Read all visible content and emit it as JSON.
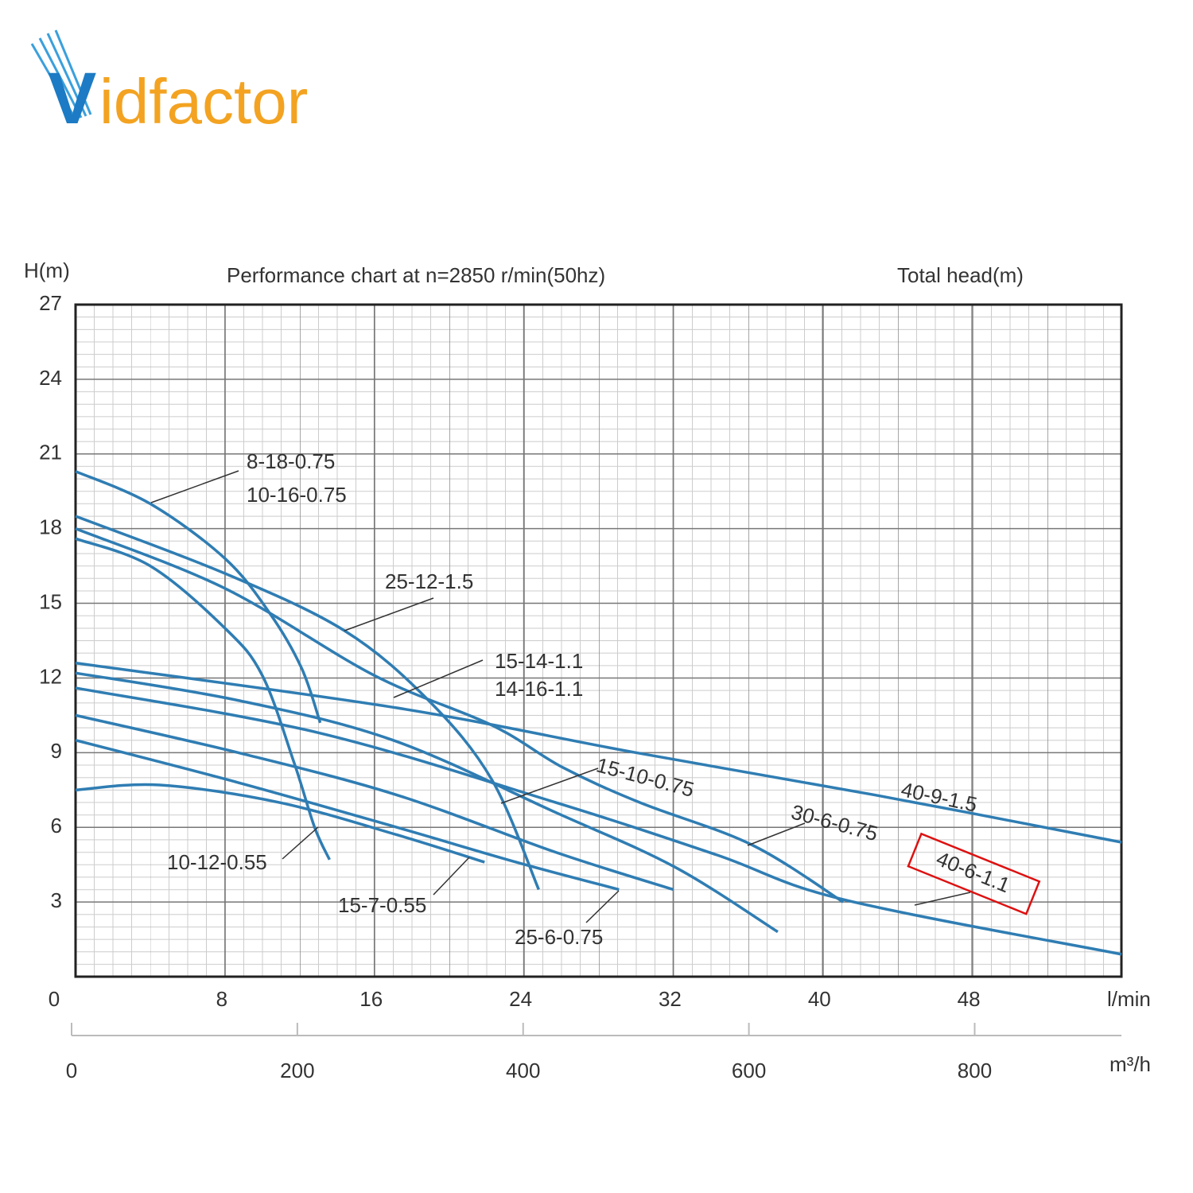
{
  "logo": {
    "initial": "V",
    "rest": "idfactor"
  },
  "chart_data": {
    "type": "line",
    "title": "Performance chart at n=2850 r/min(50hz)",
    "y_label": "H(m)",
    "y_caption": "Total head(m)",
    "x_unit": "l/min",
    "x2_unit": "m³/h",
    "xlim": [
      0,
      56
    ],
    "xticks": [
      8,
      16,
      24,
      32,
      40,
      48
    ],
    "ylim": [
      0,
      27
    ],
    "yticks": [
      0,
      3,
      6,
      9,
      12,
      15,
      18,
      21,
      24,
      27
    ],
    "x2lim": [
      0,
      930
    ],
    "x2ticks": [
      0,
      200,
      400,
      600,
      800
    ],
    "grid": true,
    "color": "#2f7db3",
    "series": [
      {
        "names": [
          "8-18-0.75",
          "10-16-0.75"
        ],
        "x": [
          0,
          4,
          8,
          10.4,
          12.1,
          13.1
        ],
        "values": [
          20.3,
          19,
          16.8,
          14.6,
          12.4,
          10.2
        ]
      },
      {
        "names": [
          "10-12-0.55"
        ],
        "x": [
          0,
          4,
          8,
          10,
          11.7,
          12.8,
          13.6
        ],
        "values": [
          17.6,
          16.5,
          14.0,
          12.1,
          8.6,
          6.0,
          4.7
        ]
      },
      {
        "names": [
          "25-12-1.5"
        ],
        "x": [
          0,
          8,
          14.4,
          18.9,
          22.3,
          24.8
        ],
        "values": [
          18.5,
          16.2,
          13.9,
          11.1,
          7.9,
          3.5
        ]
      },
      {
        "names": [
          "30-6-0.75"
        ],
        "x": [
          0,
          8,
          16,
          22.3,
          26.1,
          30.2,
          36.2,
          41.1
        ],
        "values": [
          18.0,
          15.6,
          12.1,
          10.1,
          8.4,
          7.0,
          5.3,
          3.0
        ]
      },
      {
        "names": [
          "15-14-1.1",
          "14-16-1.1"
        ],
        "x": [
          0,
          8.7,
          17,
          25.7,
          32.1,
          37.6
        ],
        "values": [
          12.2,
          11.1,
          9.5,
          6.6,
          4.4,
          1.8
        ]
      },
      {
        "names": [
          "40-9-1.5"
        ],
        "x": [
          0,
          17.2,
          30,
          42.8,
          56
        ],
        "values": [
          12.6,
          10.8,
          9.0,
          7.3,
          5.4
        ]
      },
      {
        "names": [
          "40-6-1.1"
        ],
        "x": [
          0,
          13,
          25.7,
          34.3,
          41.1,
          56
        ],
        "values": [
          11.6,
          9.8,
          7.0,
          4.9,
          3.1,
          0.9
        ]
      },
      {
        "names": [
          "15-10-0.75"
        ],
        "x": [
          0,
          8.7,
          17.2,
          25.7,
          32
        ],
        "values": [
          10.5,
          9.0,
          7.3,
          5.0,
          3.5
        ]
      },
      {
        "names": [
          "25-6-0.75"
        ],
        "x": [
          0,
          8.7,
          17.2,
          23.6,
          29.1
        ],
        "values": [
          9.5,
          7.8,
          6.0,
          4.6,
          3.5
        ]
      },
      {
        "names": [
          "15-7-0.55"
        ],
        "x": [
          0,
          4.5,
          10.9,
          17.2,
          21.9
        ],
        "values": [
          7.5,
          7.7,
          7.0,
          5.7,
          4.6
        ]
      }
    ]
  }
}
